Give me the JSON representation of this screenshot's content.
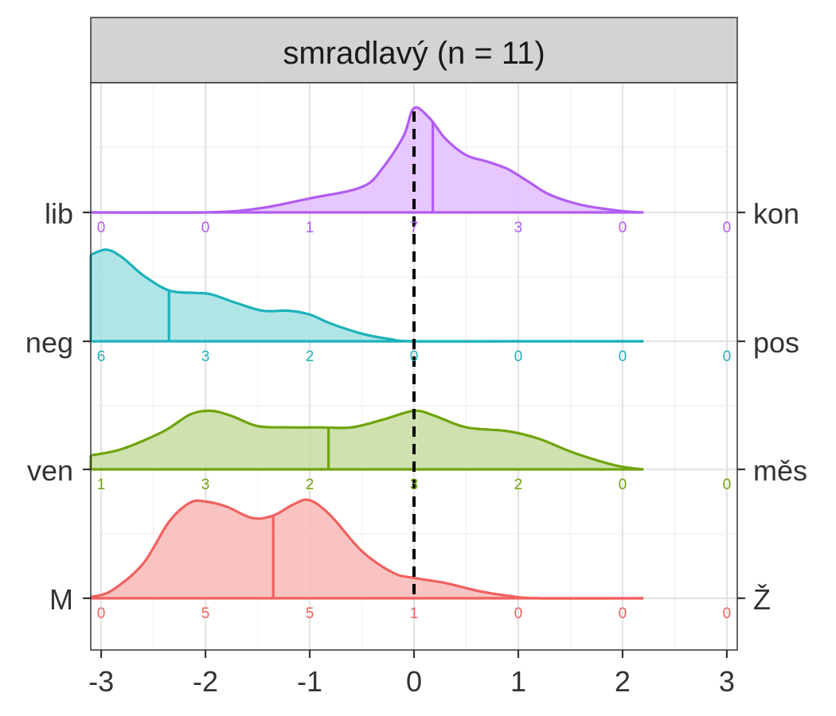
{
  "chart_data": {
    "type": "ridgeline",
    "title": "smradlavý (n = 11)",
    "xlim": [
      -3.1,
      3.1
    ],
    "x_ticks": [
      -3,
      -2,
      -1,
      0,
      1,
      2,
      3
    ],
    "x_tick_labels": [
      "-3",
      "-2",
      "-1",
      "0",
      "1",
      "2",
      "3"
    ],
    "reference_line": 0,
    "grid": true,
    "count_positions": [
      -3,
      -2,
      -1,
      0,
      1,
      2,
      3
    ],
    "series": [
      {
        "left_label": "lib",
        "right_label": "kon",
        "color": "#B25CF2",
        "fill": "#E2BDFF",
        "mean": 0.18,
        "counts": [
          "0",
          "0",
          "1",
          "7",
          "3",
          "0",
          "0"
        ],
        "density": [
          [
            -3.1,
            0
          ],
          [
            -2.0,
            0.0
          ],
          [
            -1.5,
            0.03
          ],
          [
            -1.0,
            0.11
          ],
          [
            -0.5,
            0.2
          ],
          [
            -0.3,
            0.35
          ],
          [
            -0.1,
            0.6
          ],
          [
            0.0,
            0.82
          ],
          [
            0.15,
            0.74
          ],
          [
            0.3,
            0.58
          ],
          [
            0.5,
            0.45
          ],
          [
            0.7,
            0.4
          ],
          [
            0.9,
            0.34
          ],
          [
            1.1,
            0.24
          ],
          [
            1.3,
            0.14
          ],
          [
            1.6,
            0.06
          ],
          [
            2.0,
            0.01
          ],
          [
            2.2,
            0
          ]
        ]
      },
      {
        "left_label": "neg",
        "right_label": "pos",
        "color": "#1DB2BA",
        "fill": "#A2E1E4",
        "mean": -2.35,
        "counts": [
          "6",
          "3",
          "2",
          "0",
          "0",
          "0",
          "0"
        ],
        "density": [
          [
            -3.1,
            0.68
          ],
          [
            -2.95,
            0.72
          ],
          [
            -2.8,
            0.66
          ],
          [
            -2.6,
            0.52
          ],
          [
            -2.35,
            0.4
          ],
          [
            -2.1,
            0.38
          ],
          [
            -1.95,
            0.37
          ],
          [
            -1.7,
            0.3
          ],
          [
            -1.45,
            0.24
          ],
          [
            -1.2,
            0.24
          ],
          [
            -1.0,
            0.21
          ],
          [
            -0.8,
            0.14
          ],
          [
            -0.5,
            0.06
          ],
          [
            -0.25,
            0.02
          ],
          [
            0.0,
            0.0
          ],
          [
            1.0,
            0.0
          ],
          [
            2.2,
            0
          ]
        ]
      },
      {
        "left_label": "ven",
        "right_label": "měs",
        "color": "#6FA40C",
        "fill": "#C6DCA0",
        "mean": -0.82,
        "counts": [
          "1",
          "3",
          "2",
          "3",
          "2",
          "0",
          "0"
        ],
        "density": [
          [
            -3.1,
            0.11
          ],
          [
            -2.8,
            0.16
          ],
          [
            -2.4,
            0.3
          ],
          [
            -2.15,
            0.43
          ],
          [
            -1.95,
            0.46
          ],
          [
            -1.75,
            0.42
          ],
          [
            -1.5,
            0.34
          ],
          [
            -1.2,
            0.33
          ],
          [
            -0.9,
            0.33
          ],
          [
            -0.6,
            0.33
          ],
          [
            -0.3,
            0.39
          ],
          [
            0.0,
            0.46
          ],
          [
            0.2,
            0.42
          ],
          [
            0.5,
            0.33
          ],
          [
            0.9,
            0.3
          ],
          [
            1.2,
            0.24
          ],
          [
            1.5,
            0.14
          ],
          [
            1.8,
            0.06
          ],
          [
            2.0,
            0.02
          ],
          [
            2.2,
            0
          ]
        ]
      },
      {
        "left_label": "M",
        "right_label": "Ž",
        "color": "#F0615E",
        "fill": "#F8B8B7",
        "mean": -1.35,
        "counts": [
          "0",
          "5",
          "5",
          "1",
          "0",
          "0",
          "0"
        ],
        "density": [
          [
            -3.1,
            0.01
          ],
          [
            -2.9,
            0.06
          ],
          [
            -2.6,
            0.27
          ],
          [
            -2.35,
            0.6
          ],
          [
            -2.15,
            0.75
          ],
          [
            -2.0,
            0.76
          ],
          [
            -1.8,
            0.72
          ],
          [
            -1.55,
            0.63
          ],
          [
            -1.35,
            0.65
          ],
          [
            -1.15,
            0.74
          ],
          [
            -1.0,
            0.77
          ],
          [
            -0.8,
            0.65
          ],
          [
            -0.5,
            0.37
          ],
          [
            -0.2,
            0.2
          ],
          [
            0.0,
            0.16
          ],
          [
            0.3,
            0.12
          ],
          [
            0.6,
            0.06
          ],
          [
            0.9,
            0.02
          ],
          [
            1.2,
            0.0
          ],
          [
            2.2,
            0
          ]
        ]
      }
    ]
  }
}
